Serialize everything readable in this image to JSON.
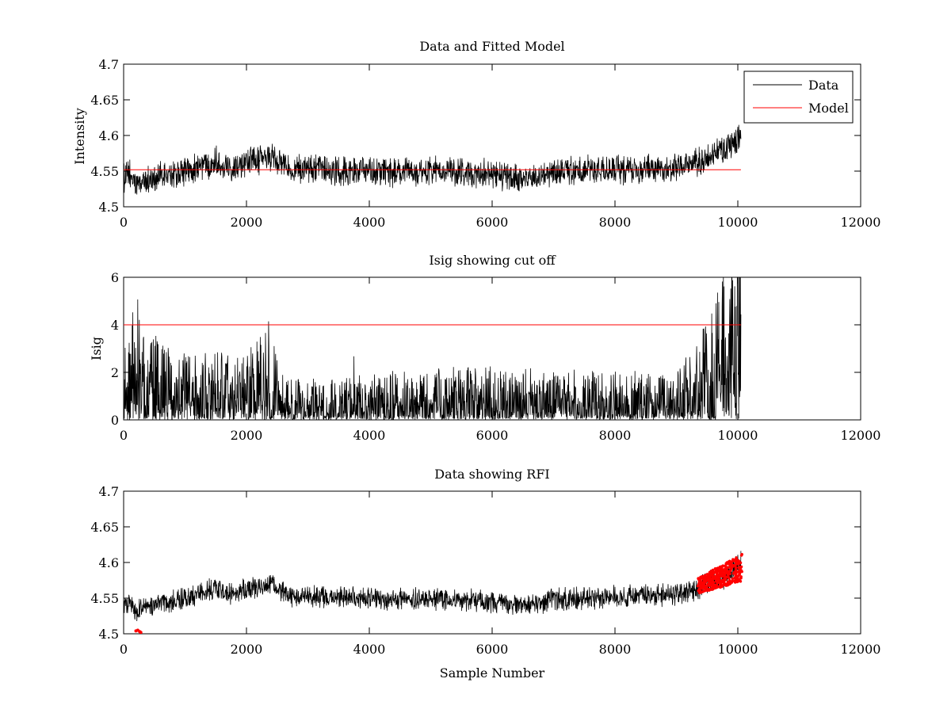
{
  "chart_data": [
    {
      "type": "line",
      "title": "Data and Fitted Model",
      "xlabel": "",
      "ylabel": "Intensity",
      "xlim": [
        0,
        12000
      ],
      "ylim": [
        4.5,
        4.7
      ],
      "xticks": [
        "0",
        "2000",
        "4000",
        "6000",
        "8000",
        "10000",
        "12000"
      ],
      "yticks": [
        "4.5",
        "4.55",
        "4.6",
        "4.65",
        "4.7"
      ],
      "grid": false,
      "legend": {
        "placement": "top-right",
        "entries": [
          {
            "name": "Data",
            "color": "#000000"
          },
          {
            "name": "Model",
            "color": "#ff0000"
          }
        ]
      },
      "series": [
        {
          "name": "Data",
          "color": "#000000",
          "n_samples": 10050,
          "x": [
            0,
            100,
            200,
            300,
            500,
            800,
            1000,
            1200,
            1500,
            1700,
            2000,
            2200,
            2400,
            2600,
            2800,
            3000,
            3500,
            4000,
            4500,
            5000,
            5500,
            6000,
            6300,
            6600,
            7000,
            7500,
            8000,
            8500,
            9000,
            9300,
            9600,
            9800,
            10000,
            10050
          ],
          "y": [
            4.54,
            4.545,
            4.53,
            4.535,
            4.54,
            4.545,
            4.55,
            4.555,
            4.565,
            4.555,
            4.563,
            4.565,
            4.57,
            4.56,
            4.552,
            4.552,
            4.55,
            4.55,
            4.548,
            4.55,
            4.548,
            4.545,
            4.54,
            4.542,
            4.548,
            4.55,
            4.552,
            4.553,
            4.555,
            4.56,
            4.575,
            4.58,
            4.595,
            4.6
          ],
          "noise": 0.016
        },
        {
          "name": "Model",
          "color": "#ff0000",
          "x": [
            0,
            10050
          ],
          "y": [
            4.552,
            4.552
          ]
        }
      ]
    },
    {
      "type": "line",
      "title": "Isig showing cut off",
      "xlabel": "",
      "ylabel": "Isig",
      "xlim": [
        0,
        12000
      ],
      "ylim": [
        0,
        6
      ],
      "xticks": [
        "0",
        "2000",
        "4000",
        "6000",
        "8000",
        "10000",
        "12000"
      ],
      "yticks": [
        "0",
        "2",
        "4",
        "6"
      ],
      "grid": false,
      "series": [
        {
          "name": "",
          "color": "#000000",
          "n_samples": 10050,
          "x": [
            0,
            200,
            400,
            800,
            1500,
            2000,
            2400,
            2600,
            3000,
            4000,
            5000,
            6000,
            7000,
            8000,
            9000,
            9300,
            9600,
            9800,
            10000,
            10050
          ],
          "y": [
            0.8,
            1.5,
            1.2,
            0.8,
            0.8,
            0.8,
            1.2,
            0.5,
            0.45,
            0.55,
            0.6,
            0.65,
            0.6,
            0.55,
            0.6,
            0.9,
            1.4,
            2.0,
            3.0,
            3.2
          ],
          "noise": 1.0
        },
        {
          "name": "",
          "color": "#ff0000",
          "x": [
            0,
            10050
          ],
          "y": [
            4,
            4
          ]
        }
      ]
    },
    {
      "type": "line",
      "title": "Data showing RFI",
      "xlabel": "Sample Number",
      "ylabel": "",
      "xlim": [
        0,
        12000
      ],
      "ylim": [
        4.5,
        4.7
      ],
      "xticks": [
        "0",
        "2000",
        "4000",
        "6000",
        "8000",
        "10000",
        "12000"
      ],
      "yticks": [
        "4.5",
        "4.55",
        "4.6",
        "4.65",
        "4.7"
      ],
      "grid": false,
      "series": [
        {
          "name": "",
          "color": "#000000",
          "n_samples": 10050,
          "x": [
            0,
            100,
            200,
            300,
            500,
            800,
            1000,
            1200,
            1500,
            1700,
            2000,
            2200,
            2400,
            2600,
            2800,
            3000,
            3500,
            4000,
            4500,
            5000,
            5500,
            6000,
            6300,
            6600,
            7000,
            7500,
            8000,
            8500,
            9000,
            9300,
            9600,
            9800,
            10000,
            10050
          ],
          "y": [
            4.54,
            4.545,
            4.53,
            4.535,
            4.54,
            4.545,
            4.55,
            4.555,
            4.565,
            4.555,
            4.563,
            4.565,
            4.57,
            4.56,
            4.552,
            4.552,
            4.55,
            4.55,
            4.548,
            4.55,
            4.548,
            4.545,
            4.54,
            4.542,
            4.548,
            4.55,
            4.552,
            4.553,
            4.555,
            4.56,
            4.575,
            4.58,
            4.595,
            4.6
          ],
          "noise": 0.012
        },
        {
          "name": "",
          "color": "#ff0000",
          "marker": "dot",
          "x_range": [
            9350,
            10070
          ],
          "y_range": [
            4.556,
            4.612
          ],
          "count": 360
        },
        {
          "name": "",
          "color": "#ff0000",
          "marker": "dot",
          "x": [
            200,
            230,
            260,
            280
          ],
          "y": [
            4.504,
            4.505,
            4.503,
            4.502
          ]
        }
      ]
    }
  ]
}
